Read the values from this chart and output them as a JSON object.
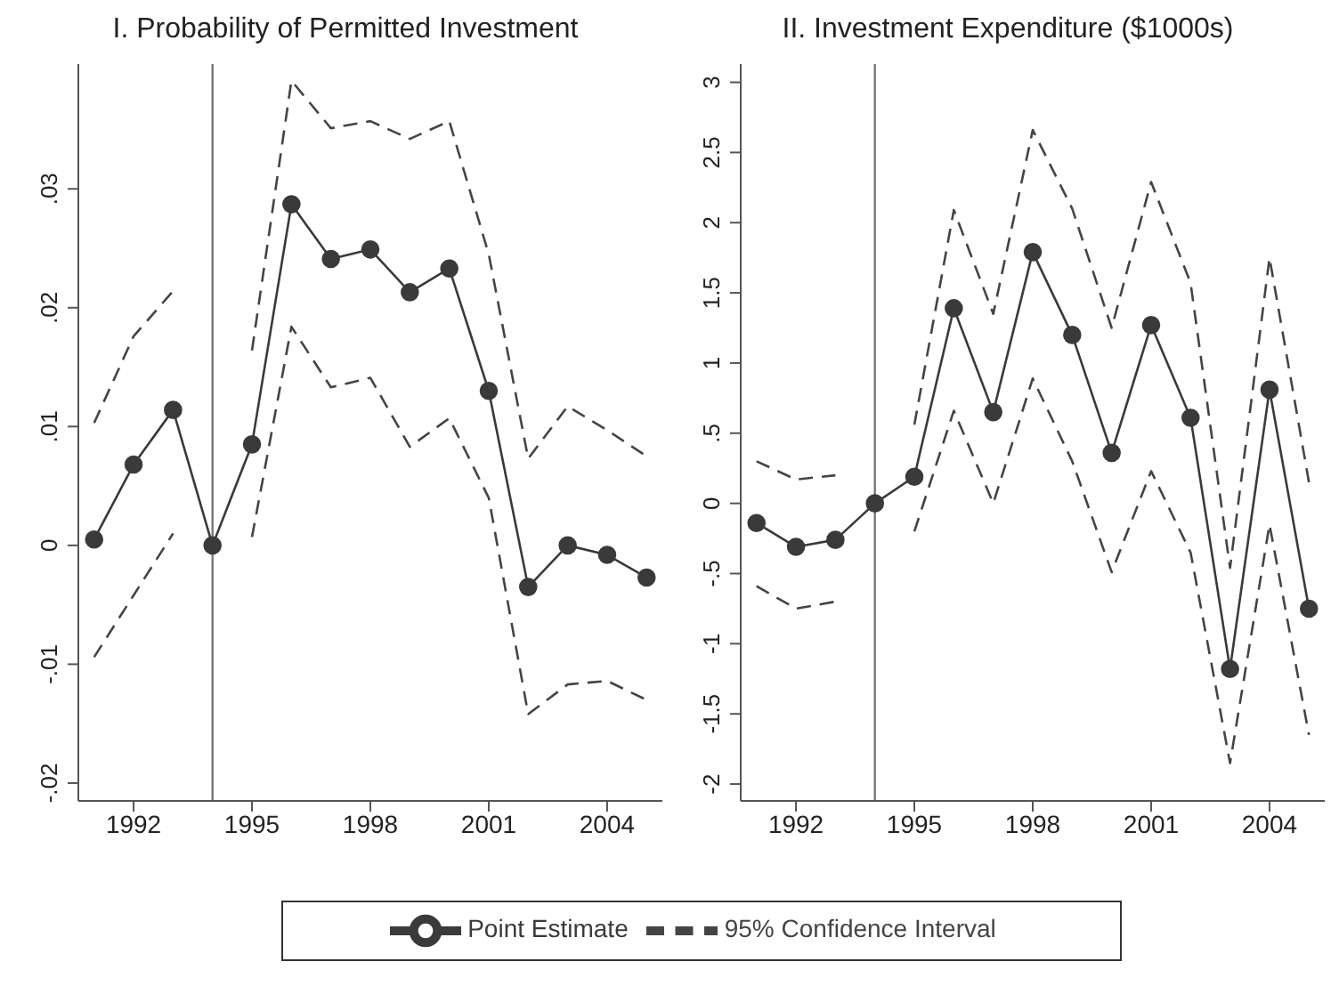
{
  "chart_data": [
    {
      "type": "line",
      "title": "I. Probability of Permitted Investment",
      "x": [
        1991,
        1992,
        1993,
        1994,
        1995,
        1996,
        1997,
        1998,
        1999,
        2000,
        2001,
        2002,
        2003,
        2004,
        2005
      ],
      "xlim": [
        1990.6,
        2005.4
      ],
      "xticks": [
        1992,
        1995,
        1998,
        2001,
        2004
      ],
      "ylim": [
        -0.0215,
        0.0405
      ],
      "yticks": [
        {
          "value": -0.02,
          "label": "-.02"
        },
        {
          "value": -0.01,
          "label": "-.01"
        },
        0,
        {
          "value": 0.01,
          "label": ".01"
        },
        {
          "value": 0.02,
          "label": ".02"
        },
        {
          "value": 0.03,
          "label": ".03"
        }
      ],
      "grid": false,
      "legend": "bottom",
      "ref_lines": [
        {
          "axis": "x",
          "value": 1994,
          "color": "#777777"
        }
      ],
      "series": [
        {
          "name": "Point Estimate",
          "color": "#3a3a3a",
          "marker": "circle",
          "line_style": "solid",
          "values": [
            0.0005,
            0.0068,
            0.0114,
            0,
            0.0085,
            0.0287,
            0.0241,
            0.0249,
            0.0213,
            0.0233,
            0.013,
            -0.0035,
            0,
            -0.0008,
            -0.0027
          ]
        },
        {
          "name": "95% Confidence Interval",
          "color": "#444444",
          "marker": "none",
          "line_style": "dashed",
          "values": [
            0.0103,
            0.0176,
            0.0214,
            null,
            0.0164,
            0.0391,
            0.0351,
            0.0357,
            0.0342,
            0.0357,
            0.0245,
            0.0073,
            0.0117,
            0.0097,
            0.0075
          ]
        },
        {
          "color": "#444444",
          "marker": "none",
          "line_style": "dashed",
          "values": [
            -0.0094,
            -0.0042,
            0.001,
            null,
            0.0007,
            0.0184,
            0.0133,
            0.0141,
            0.0083,
            0.0107,
            0.004,
            -0.0142,
            -0.0117,
            -0.0114,
            -0.013
          ]
        }
      ]
    },
    {
      "type": "line",
      "title": "II. Investment Expenditure ($1000s)",
      "x": [
        1991,
        1992,
        1993,
        1994,
        1995,
        1996,
        1997,
        1998,
        1999,
        2000,
        2001,
        2002,
        2003,
        2004,
        2005
      ],
      "xlim": [
        1990.6,
        2005.4
      ],
      "xticks": [
        1992,
        1995,
        1998,
        2001,
        2004
      ],
      "ylim": [
        -2.12,
        3.13
      ],
      "yticks": [
        -2,
        {
          "value": -1.5,
          "label": "-1.5"
        },
        -1,
        {
          "value": -0.5,
          "label": "-.5"
        },
        0,
        {
          "value": 0.5,
          "label": ".5"
        },
        1,
        1.5,
        2,
        2.5,
        3
      ],
      "grid": false,
      "ref_lines": [
        {
          "axis": "x",
          "value": 1994,
          "color": "#777777"
        }
      ],
      "series": [
        {
          "color": "#3a3a3a",
          "marker": "circle",
          "line_style": "solid",
          "values": [
            -0.14,
            -0.31,
            -0.26,
            0,
            0.19,
            1.39,
            0.65,
            1.79,
            1.2,
            0.36,
            1.27,
            0.61,
            -1.18,
            0.81,
            -0.75
          ]
        },
        {
          "color": "#444444",
          "marker": "none",
          "line_style": "dashed",
          "values": [
            0.3,
            0.17,
            0.2,
            null,
            0.56,
            2.09,
            1.35,
            2.66,
            2.1,
            1.25,
            2.29,
            1.57,
            -0.46,
            1.75,
            0.15
          ]
        },
        {
          "color": "#444444",
          "marker": "none",
          "line_style": "dashed",
          "values": [
            -0.59,
            -0.75,
            -0.7,
            null,
            -0.2,
            0.66,
            0,
            0.89,
            0.3,
            -0.49,
            0.23,
            -0.35,
            -1.85,
            -0.15,
            -1.65
          ]
        }
      ]
    }
  ]
}
